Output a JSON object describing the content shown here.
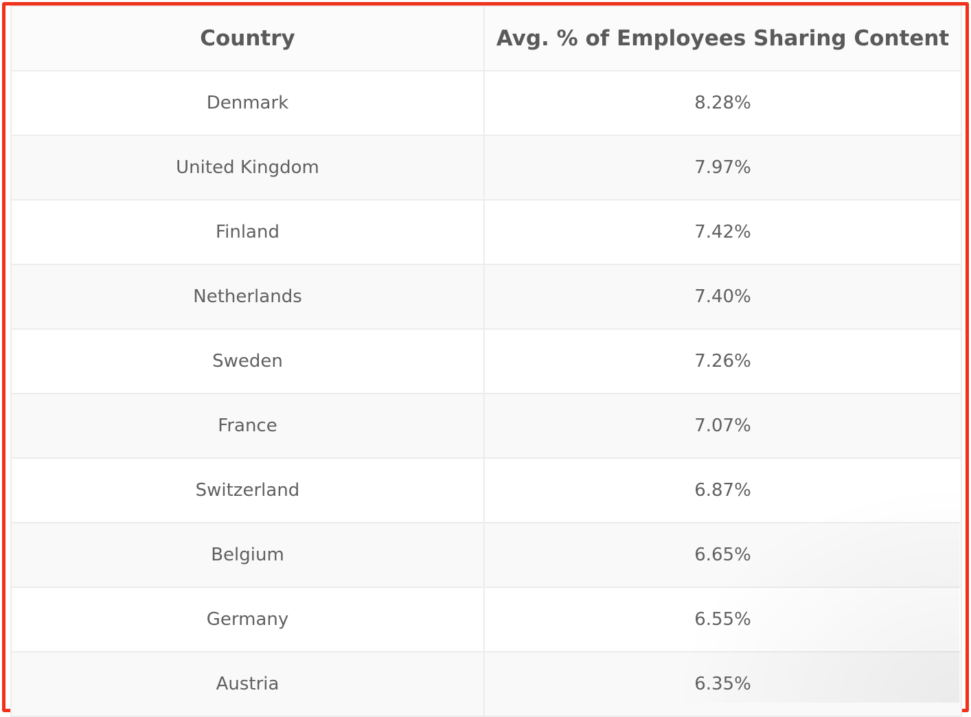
{
  "table": {
    "headers": {
      "country": "Country",
      "avg": "Avg. % of Employees Sharing Content"
    },
    "rows": [
      {
        "country": "Denmark",
        "value": "8.28%"
      },
      {
        "country": "United Kingdom",
        "value": "7.97%"
      },
      {
        "country": "Finland",
        "value": "7.42%"
      },
      {
        "country": "Netherlands",
        "value": "7.40%"
      },
      {
        "country": "Sweden",
        "value": "7.26%"
      },
      {
        "country": "France",
        "value": "7.07%"
      },
      {
        "country": "Switzerland",
        "value": "6.87%"
      },
      {
        "country": "Belgium",
        "value": "6.65%"
      },
      {
        "country": "Germany",
        "value": "6.55%"
      },
      {
        "country": "Austria",
        "value": "6.35%"
      }
    ]
  },
  "colors": {
    "frame_border": "#f0311c",
    "text": "#606060",
    "grid": "#ececec"
  }
}
